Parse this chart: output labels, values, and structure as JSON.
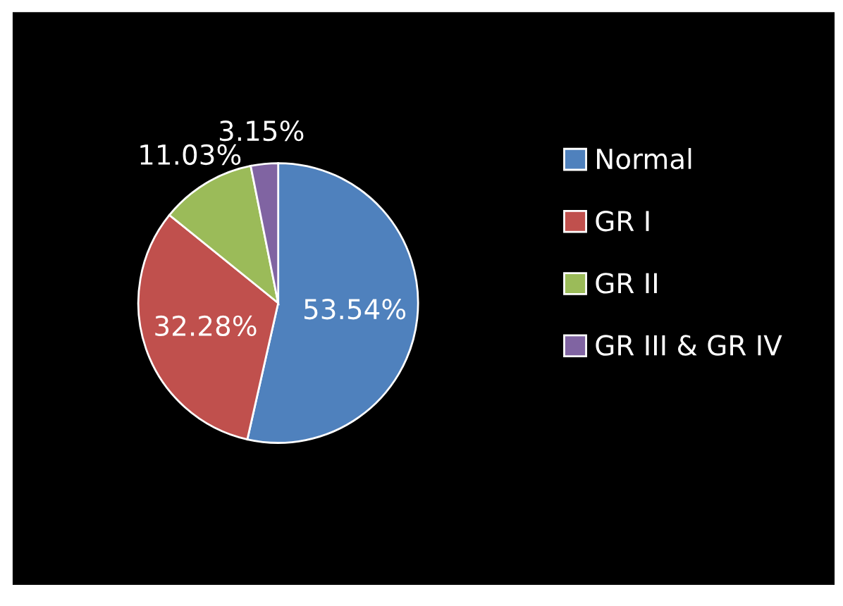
{
  "chart_data": {
    "type": "pie",
    "categories": [
      "Normal",
      "GR I",
      "GR II",
      "GR III & GR IV"
    ],
    "values": [
      53.54,
      32.28,
      11.03,
      3.15
    ],
    "colors": [
      "#4f81bd",
      "#c0504d",
      "#9bbb59",
      "#8064a2"
    ],
    "value_labels": [
      "53.54%",
      "32.28%",
      "11.03%",
      "3.15%"
    ],
    "legend": "right"
  }
}
